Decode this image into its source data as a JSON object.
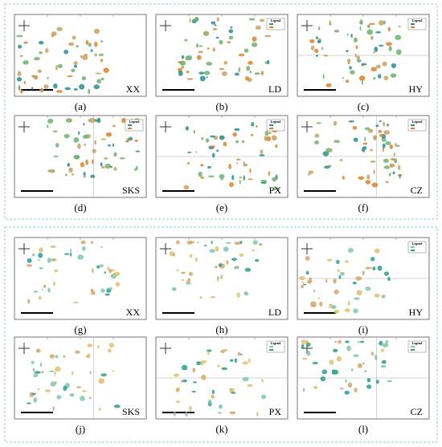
{
  "panels": [
    {
      "label": "(a)",
      "region": "XX"
    },
    {
      "label": "(b)",
      "region": "LD",
      "legend": "Legend"
    },
    {
      "label": "(c)",
      "region": "HY",
      "legend": "Legend"
    },
    {
      "label": "(d)",
      "region": "SKS",
      "legend": "Legend"
    },
    {
      "label": "(e)",
      "region": "PX",
      "legend": "Legend"
    },
    {
      "label": "(f)",
      "region": "CZ",
      "legend": "Legend"
    },
    {
      "label": "(g)",
      "region": "XX"
    },
    {
      "label": "(h)",
      "region": "LD"
    },
    {
      "label": "(i)",
      "region": "HY",
      "legend": "Legend"
    },
    {
      "label": "(j)",
      "region": "SKS"
    },
    {
      "label": "(k)",
      "region": "PX",
      "legend": "Legend"
    },
    {
      "label": "(l)",
      "region": "CZ",
      "legend": "Legend"
    }
  ]
}
